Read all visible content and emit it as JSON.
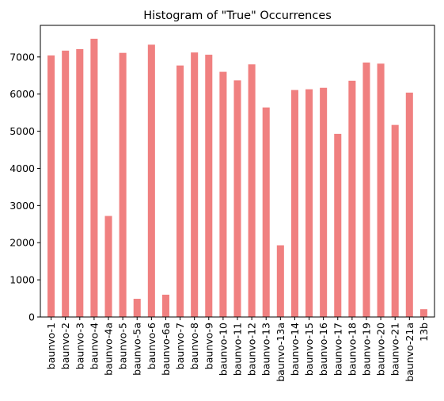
{
  "chart_data": {
    "type": "bar",
    "title": "Histogram of \"True\" Occurrences",
    "xlabel": "",
    "ylabel": "",
    "ylim": [
      0,
      7850
    ],
    "yticks": [
      0,
      1000,
      2000,
      3000,
      4000,
      5000,
      6000,
      7000
    ],
    "grid": false,
    "legend": "none",
    "bar_color": "#f08080",
    "categories": [
      "baunvo-1",
      "baunvo-2",
      "baunvo-3",
      "baunvo-4",
      "baunvo-4a",
      "baunvo-5",
      "baunvo-5a",
      "baunvo-6",
      "baunvo-6a",
      "baunvo-7",
      "baunvo-8",
      "baunvo-9",
      "baunvo-10",
      "baunvo-11",
      "baunvo-12",
      "baunvo-13",
      "baunvo-13a",
      "baunvo-14",
      "baunvo-15",
      "baunvo-16",
      "baunvo-17",
      "baunvo-18",
      "baunvo-19",
      "baunvo-20",
      "baunvo-21",
      "baunvo-21a",
      "13b"
    ],
    "values": [
      7040,
      7170,
      7210,
      7490,
      2720,
      7110,
      490,
      7330,
      600,
      6770,
      7120,
      7060,
      6600,
      6370,
      6800,
      5640,
      1930,
      6110,
      6130,
      6170,
      4930,
      6360,
      6850,
      6820,
      5170,
      6040,
      210
    ]
  }
}
